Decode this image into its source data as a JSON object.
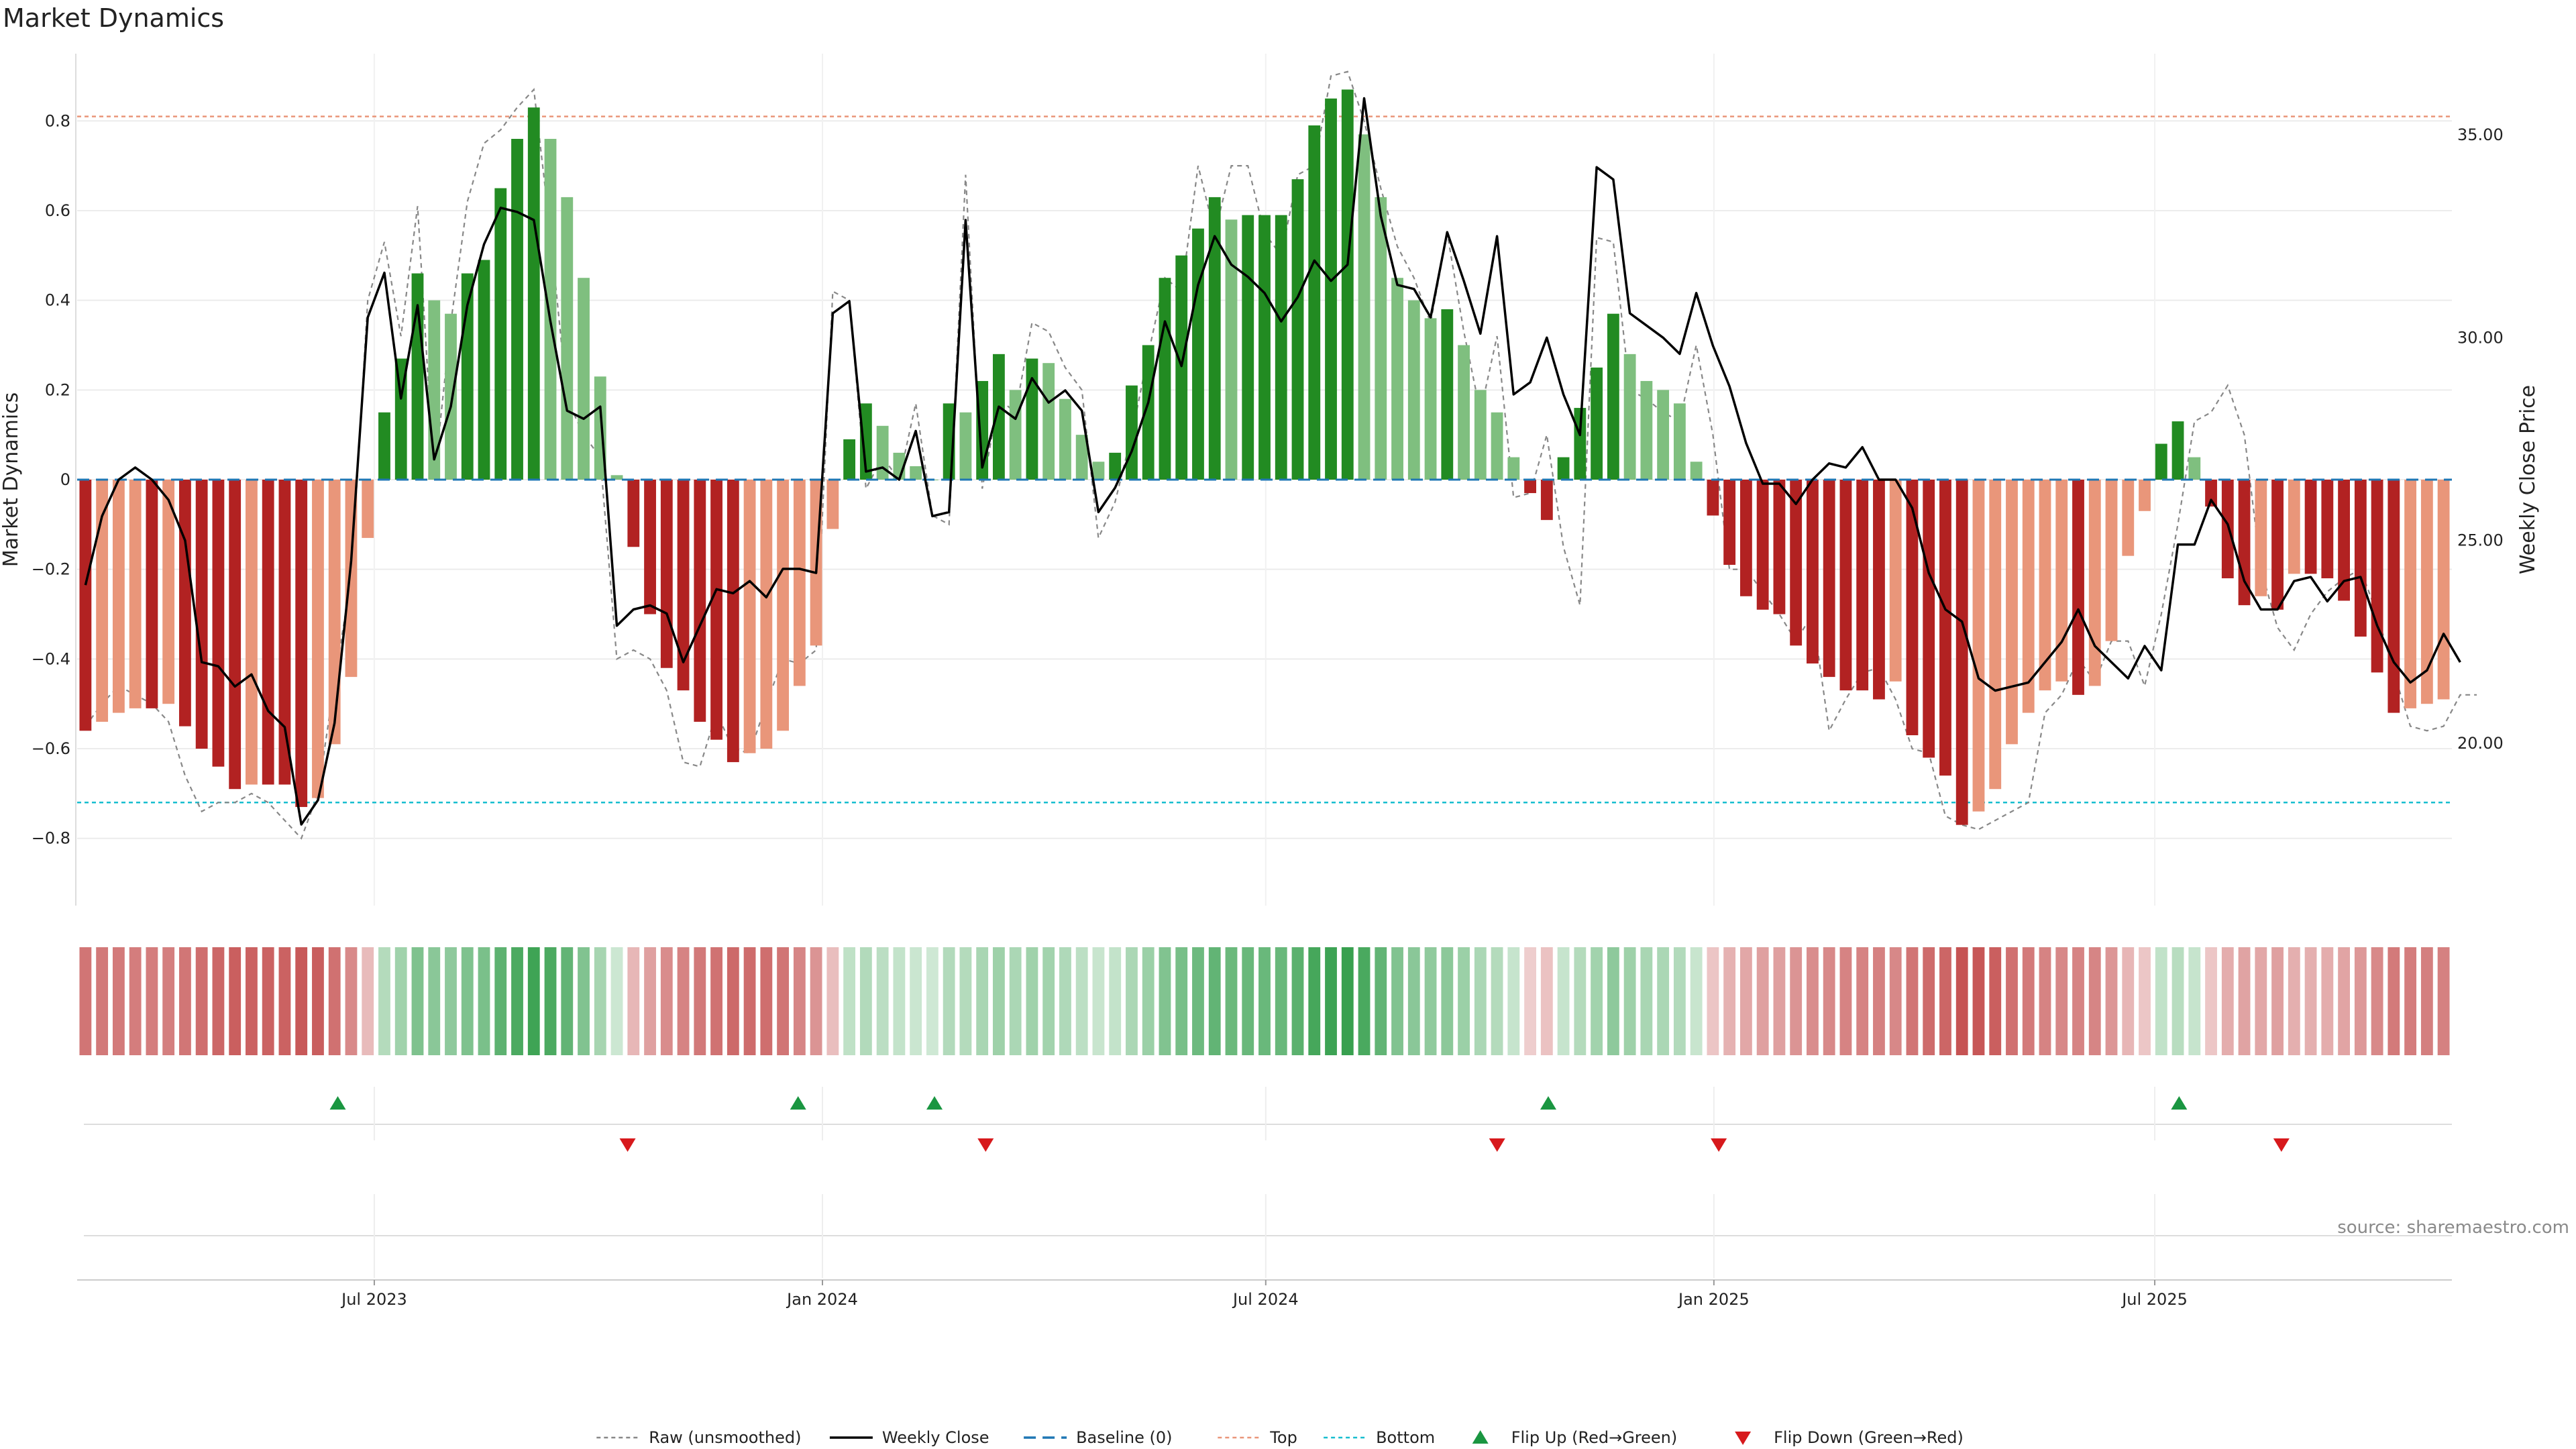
{
  "page_title": "Market Dynamics",
  "source_note": "source: sharemaestro.com",
  "colors": {
    "strong_green": "#228b22",
    "light_green": "#7fbf7f",
    "strong_red": "#b22222",
    "light_red": "#e9967a",
    "close_line": "#000000",
    "raw_line": "#888888",
    "baseline": "#1f77b4",
    "top_line": "#e9967a",
    "bottom_line": "#17becf",
    "flip_up": "#1a9641",
    "flip_down": "#d7191c"
  },
  "chart_data": {
    "type": "bar",
    "ylabel_left": "Market Dynamics",
    "ylabel_right": "Weekly Close Price",
    "ylim_left": [
      -0.95,
      0.95
    ],
    "ylim_right": [
      16.0,
      37.0
    ],
    "yticks_left": [
      "0.8",
      "0.6",
      "0.4",
      "0.2",
      "0",
      "−0.2",
      "−0.4",
      "−0.6",
      "−0.8"
    ],
    "yticks_right": [
      "35.00",
      "30.00",
      "25.00",
      "20.00"
    ],
    "x_start": "2023-03-01",
    "x_end": "2025-10-31",
    "xticks": [
      {
        "date": "2023-07-01",
        "label": "Jul 2023"
      },
      {
        "date": "2024-01-01",
        "label": "Jan 2024"
      },
      {
        "date": "2024-07-01",
        "label": "Jul 2024"
      },
      {
        "date": "2025-01-01",
        "label": "Jan 2025"
      },
      {
        "date": "2025-07-01",
        "label": "Jul 2025"
      }
    ],
    "grid": true,
    "legend_position": "bottom-center",
    "top_threshold": 0.81,
    "bottom_threshold": -0.72,
    "baseline": 0,
    "dynamics": [
      -0.56,
      -0.54,
      -0.52,
      -0.51,
      -0.51,
      -0.5,
      -0.55,
      -0.6,
      -0.64,
      -0.69,
      -0.68,
      -0.68,
      -0.68,
      -0.73,
      -0.71,
      -0.59,
      -0.44,
      -0.13,
      0.15,
      0.27,
      0.46,
      0.4,
      0.37,
      0.46,
      0.49,
      0.65,
      0.76,
      0.83,
      0.76,
      0.63,
      0.45,
      0.23,
      0.01,
      -0.15,
      -0.3,
      -0.42,
      -0.47,
      -0.54,
      -0.58,
      -0.63,
      -0.61,
      -0.6,
      -0.56,
      -0.46,
      -0.37,
      -0.11,
      0.09,
      0.17,
      0.12,
      0.06,
      0.03,
      0.0,
      0.17,
      0.15,
      0.22,
      0.28,
      0.2,
      0.27,
      0.26,
      0.18,
      0.1,
      0.04,
      0.06,
      0.21,
      0.3,
      0.45,
      0.5,
      0.56,
      0.63,
      0.58,
      0.59,
      0.59,
      0.59,
      0.67,
      0.79,
      0.85,
      0.87,
      0.77,
      0.63,
      0.45,
      0.4,
      0.36,
      0.38,
      0.3,
      0.2,
      0.15,
      0.05,
      -0.03,
      -0.09,
      0.05,
      0.16,
      0.25,
      0.37,
      0.28,
      0.22,
      0.2,
      0.17,
      0.04,
      -0.08,
      -0.19,
      -0.26,
      -0.29,
      -0.3,
      -0.37,
      -0.41,
      -0.44,
      -0.47,
      -0.47,
      -0.49,
      -0.45,
      -0.57,
      -0.62,
      -0.66,
      -0.77,
      -0.74,
      -0.69,
      -0.59,
      -0.52,
      -0.47,
      -0.45,
      -0.48,
      -0.46,
      -0.36,
      -0.17,
      -0.07,
      0.08,
      0.13,
      0.05,
      -0.06,
      -0.22,
      -0.28,
      -0.26,
      -0.29,
      -0.21,
      -0.21,
      -0.22,
      -0.27,
      -0.35,
      -0.43,
      -0.52,
      -0.51,
      -0.5,
      -0.49
    ],
    "weekly_close": [
      23.9,
      25.6,
      26.5,
      26.8,
      26.5,
      26.0,
      25.0,
      22.0,
      21.9,
      21.4,
      21.7,
      20.8,
      20.4,
      18.0,
      18.6,
      20.5,
      24.5,
      30.5,
      31.6,
      28.5,
      30.8,
      27.0,
      28.3,
      30.8,
      32.3,
      33.2,
      33.1,
      32.9,
      30.4,
      28.2,
      28.0,
      28.3,
      22.9,
      23.3,
      23.4,
      23.2,
      22.0,
      22.9,
      23.8,
      23.7,
      24.0,
      23.6,
      24.3,
      24.3,
      24.2,
      30.6,
      30.9,
      26.7,
      26.8,
      26.5,
      27.7,
      25.6,
      25.7,
      32.9,
      26.8,
      28.3,
      28.0,
      29.0,
      28.4,
      28.7,
      28.2,
      25.7,
      26.3,
      27.2,
      28.4,
      30.4,
      29.3,
      31.3,
      32.5,
      31.8,
      31.5,
      31.1,
      30.4,
      31.0,
      31.9,
      31.4,
      31.8,
      35.9,
      33.0,
      31.3,
      31.2,
      30.5,
      32.6,
      31.4,
      30.1,
      32.5,
      28.6,
      28.9,
      30.0,
      28.6,
      27.6,
      34.2,
      33.9,
      30.6,
      30.3,
      30.0,
      29.6,
      31.1,
      29.8,
      28.8,
      27.4,
      26.4,
      26.4,
      25.9,
      26.5,
      26.9,
      26.8,
      27.3,
      26.5,
      26.5,
      25.8,
      24.2,
      23.3,
      23.0,
      21.6,
      21.3,
      21.4,
      21.5,
      22.0,
      22.5,
      23.3,
      22.4,
      22.0,
      21.6,
      22.4,
      21.8,
      24.9,
      24.9,
      26.0,
      25.4,
      24.0,
      23.3,
      23.3,
      24.0,
      24.1,
      23.5,
      24.0,
      24.1,
      22.9,
      22.0,
      21.5,
      21.8,
      22.7,
      22.0
    ],
    "raw_dynamics": [
      -0.55,
      -0.5,
      -0.46,
      -0.48,
      -0.5,
      -0.54,
      -0.66,
      -0.74,
      -0.72,
      -0.72,
      -0.7,
      -0.72,
      -0.76,
      -0.8,
      -0.7,
      -0.45,
      -0.22,
      0.4,
      0.53,
      0.32,
      0.61,
      0.0,
      0.35,
      0.62,
      0.75,
      0.78,
      0.83,
      0.87,
      0.55,
      0.18,
      0.1,
      0.05,
      -0.4,
      -0.38,
      -0.4,
      -0.47,
      -0.63,
      -0.64,
      -0.52,
      -0.6,
      -0.61,
      -0.5,
      -0.4,
      -0.41,
      -0.38,
      0.42,
      0.4,
      -0.02,
      0.05,
      0.0,
      0.17,
      -0.08,
      -0.1,
      0.68,
      -0.02,
      0.18,
      0.15,
      0.35,
      0.33,
      0.25,
      0.2,
      -0.13,
      -0.05,
      0.1,
      0.28,
      0.45,
      0.42,
      0.7,
      0.55,
      0.7,
      0.7,
      0.55,
      0.5,
      0.68,
      0.7,
      0.9,
      0.91,
      0.8,
      0.65,
      0.52,
      0.45,
      0.35,
      0.55,
      0.33,
      0.15,
      0.32,
      -0.04,
      -0.03,
      0.1,
      -0.15,
      -0.28,
      0.54,
      0.53,
      0.2,
      0.18,
      0.15,
      0.13,
      0.3,
      0.1,
      -0.2,
      -0.2,
      -0.25,
      -0.3,
      -0.36,
      -0.3,
      -0.56,
      -0.49,
      -0.43,
      -0.42,
      -0.49,
      -0.6,
      -0.61,
      -0.75,
      -0.77,
      -0.78,
      -0.76,
      -0.74,
      -0.72,
      -0.52,
      -0.48,
      -0.4,
      -0.45,
      -0.36,
      -0.36,
      -0.46,
      -0.3,
      -0.1,
      0.13,
      0.15,
      0.21,
      0.1,
      -0.2,
      -0.33,
      -0.38,
      -0.3,
      -0.25,
      -0.22,
      -0.2,
      -0.3,
      -0.43,
      -0.55,
      -0.56,
      -0.55,
      -0.48,
      -0.48
    ],
    "flips_up": [
      "2023-06-16",
      "2023-12-22",
      "2024-02-16",
      "2024-10-25",
      "2025-07-11"
    ],
    "flips_down": [
      "2023-10-13",
      "2024-03-08",
      "2024-10-04",
      "2025-01-03",
      "2025-08-22"
    ],
    "legend": [
      {
        "key": "raw",
        "label": "Raw (unsmoothed)"
      },
      {
        "key": "close",
        "label": "Weekly Close"
      },
      {
        "key": "baseline",
        "label": "Baseline (0)"
      },
      {
        "key": "top",
        "label": "Top"
      },
      {
        "key": "bottom",
        "label": "Bottom"
      },
      {
        "key": "flip_up",
        "label": "Flip Up (Red→Green)"
      },
      {
        "key": "flip_down",
        "label": "Flip Down (Green→Red)"
      }
    ]
  }
}
